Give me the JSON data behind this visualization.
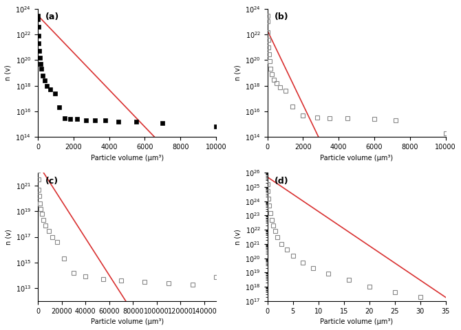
{
  "panel_a": {
    "label": "(a)",
    "xmax": 10000,
    "xlim": [
      0,
      10000
    ],
    "ylim": [
      100000000000000.0,
      1e+24
    ],
    "xlabel": "Particle volume (μm³)",
    "ylabel": "n (v)",
    "fit_n0": 3e+23,
    "fit_tau": 300,
    "data_v": [
      5,
      10,
      20,
      35,
      55,
      80,
      110,
      150,
      200,
      280,
      380,
      500,
      700,
      950,
      1200,
      1500,
      1800,
      2200,
      2700,
      3200,
      3800,
      4500,
      5500,
      7000,
      10000
    ],
    "data_n": [
      3e+23,
      1.5e+23,
      4e+22,
      8e+21,
      2e+21,
      5e+20,
      1.5e+20,
      5e+19,
      2e+19,
      6e+18,
      2.5e+18,
      1e+18,
      5e+17,
      2.5e+17,
      2e+16,
      3000000000000000.0,
      2500000000000000.0,
      2500000000000000.0,
      2000000000000000.0,
      2000000000000000.0,
      2000000000000000.0,
      1500000000000000.0,
      1500000000000000.0,
      1200000000000000.0,
      700000000000000.0
    ],
    "marker": "s",
    "marker_color": "black",
    "marker_filled": true,
    "line_color": "#d93030"
  },
  "panel_b": {
    "label": "(b)",
    "xmax": 10000,
    "xlim": [
      0,
      10000
    ],
    "ylim": [
      100000000000000.0,
      1e+24
    ],
    "xlabel": "Particle volume (μm³)",
    "ylabel": "n (v)",
    "fit_n0": 2e+22,
    "fit_tau": 150,
    "data_v": [
      5,
      10,
      20,
      35,
      55,
      80,
      120,
      180,
      250,
      350,
      500,
      700,
      1000,
      1400,
      2000,
      2800,
      3500,
      4500,
      6000,
      7200,
      10000
    ],
    "data_n": [
      3e+23,
      1e+23,
      1.5e+22,
      4e+21,
      1e+21,
      3e+20,
      8e+19,
      2e+19,
      8e+18,
      3e+18,
      1.5e+18,
      8e+17,
      4e+17,
      2.5e+16,
      5000000000000000.0,
      3500000000000000.0,
      3000000000000000.0,
      3000000000000000.0,
      2500000000000000.0,
      2000000000000000.0,
      200000000000000.0
    ],
    "marker": "s",
    "marker_color": "#888888",
    "marker_filled": false,
    "line_color": "#d93030"
  },
  "panel_c": {
    "label": "(c)",
    "xmax": 150000,
    "xlim": [
      0,
      150000
    ],
    "ylim": [
      1000000000000.0,
      1e+22
    ],
    "xlabel": "Particle volume (μm³)",
    "ylabel": "n (v)",
    "fit_n0": 5e+22,
    "fit_tau": 3000,
    "data_v": [
      100,
      300,
      600,
      1000,
      1500,
      2200,
      3200,
      4500,
      6500,
      9000,
      12000,
      16000,
      22000,
      30000,
      40000,
      55000,
      70000,
      90000,
      110000,
      130000,
      150000
    ],
    "data_n": [
      1.5e+22,
      3e+21,
      5e+20,
      1.5e+20,
      4e+19,
      1.5e+19,
      6e+18,
      2e+18,
      8e+17,
      3e+17,
      1e+17,
      4e+16,
      2000000000000000.0,
      150000000000000.0,
      80000000000000.0,
      50000000000000.0,
      40000000000000.0,
      30000000000000.0,
      25000000000000.0,
      20000000000000.0,
      70000000000000.0
    ],
    "marker": "s",
    "marker_color": "#888888",
    "marker_filled": false,
    "line_color": "#d93030"
  },
  "panel_d": {
    "label": "(d)",
    "xmax": 35,
    "xlim": [
      0,
      35
    ],
    "ylim": [
      1e+17,
      1e+26
    ],
    "xlabel": "Particle volume (μm³)",
    "ylabel": "n (v)",
    "fit_n0": 5e+25,
    "fit_tau": 1.8,
    "data_v": [
      0.05,
      0.1,
      0.2,
      0.35,
      0.55,
      0.8,
      1.1,
      1.5,
      2.0,
      2.8,
      3.8,
      5,
      7,
      9,
      12,
      16,
      20,
      25,
      30
    ],
    "data_n": [
      1.5e+25,
      5e+24,
      1.5e+24,
      5e+23,
      1.5e+23,
      5e+22,
      2e+22,
      8e+21,
      3e+21,
      1e+21,
      4e+20,
      1.5e+20,
      5e+19,
      2e+19,
      8e+18,
      3e+18,
      1e+18,
      4e+17,
      2e+17
    ],
    "marker": "s",
    "marker_color": "#888888",
    "marker_filled": false,
    "line_color": "#d93030"
  }
}
